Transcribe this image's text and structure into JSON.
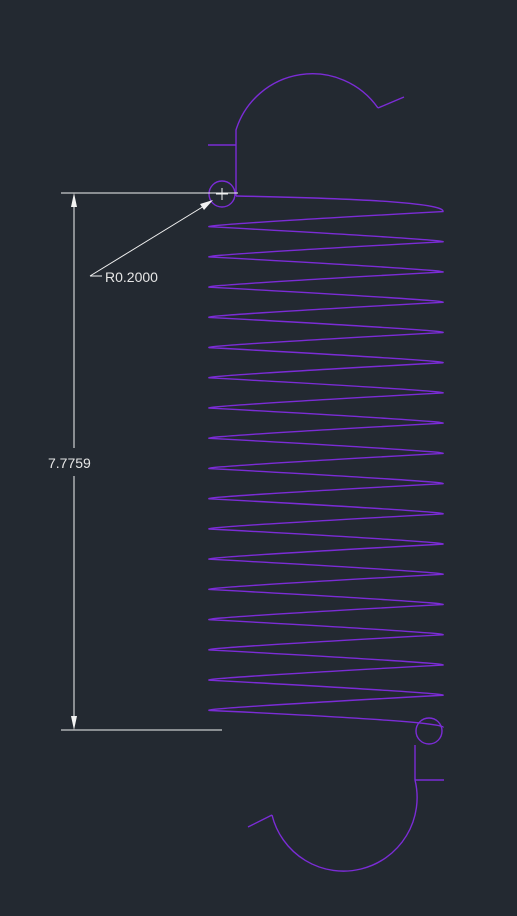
{
  "drawing": {
    "background_color": "#232931",
    "spring_color": "#7b2cd6",
    "dimension_color": "#f2f2f2",
    "coil_count": 17
  },
  "dimensions": {
    "radius_label": "R0.2000",
    "length_label": "7.7759"
  }
}
